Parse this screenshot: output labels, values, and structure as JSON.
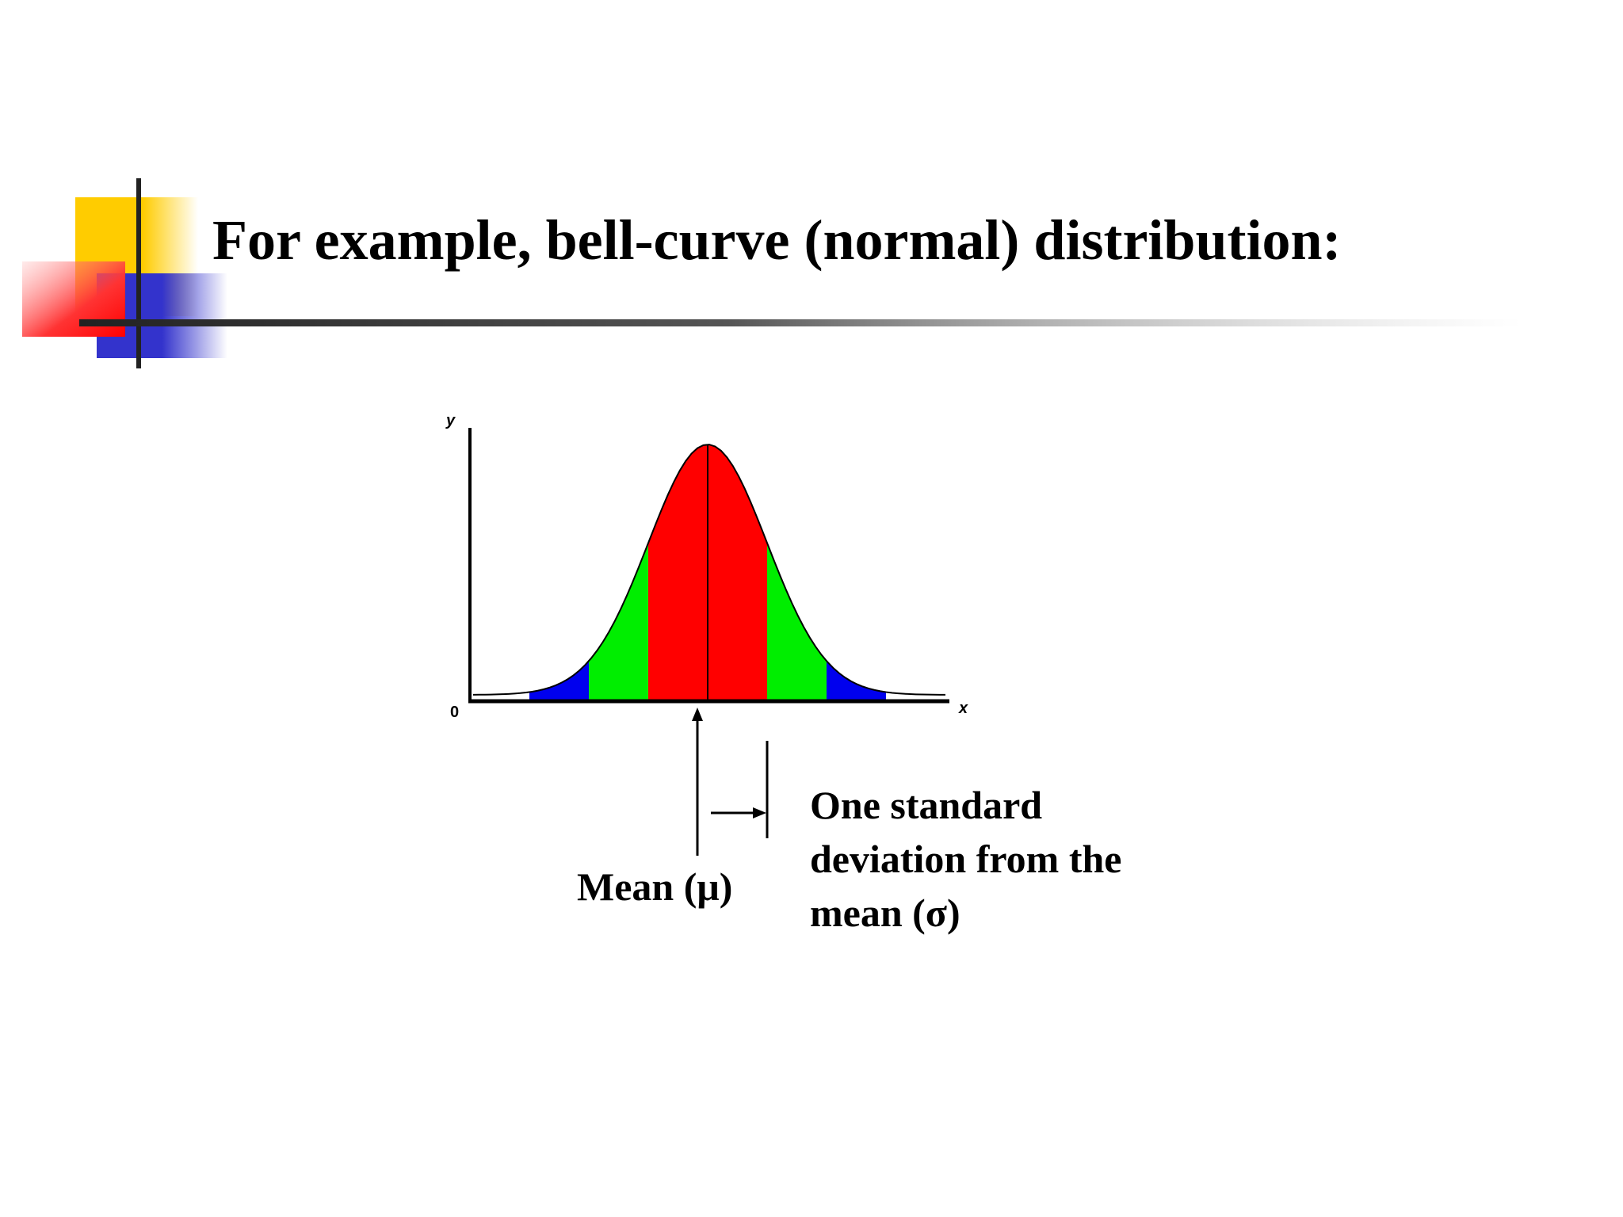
{
  "slide": {
    "title": "For example, bell-curve (normal) distribution:"
  },
  "colors": {
    "deco_yellow": "#FFCC00",
    "deco_red": "#FF3333",
    "deco_blue": "#3333CC",
    "band_1sd": "#FF0000",
    "band_2sd": "#00EE00",
    "band_3sd": "#0000EE",
    "tail": "#FFFFFF"
  },
  "annotations": {
    "mean_label": "Mean (μ)",
    "sd_label_lines": [
      "One standard",
      "deviation from the",
      "mean (σ)"
    ]
  },
  "chart_data": {
    "type": "area",
    "title": "",
    "ylabel": "y",
    "xlabel": "x",
    "origin_label": "0",
    "distribution": "normal",
    "mean": 0,
    "sd": 1,
    "xlim": [
      -4,
      4
    ],
    "bands": [
      {
        "from": -1,
        "to": 1,
        "color": "#FF0000"
      },
      {
        "from": -2,
        "to": -1,
        "color": "#00EE00"
      },
      {
        "from": 1,
        "to": 2,
        "color": "#00EE00"
      },
      {
        "from": -3,
        "to": -2,
        "color": "#0000EE"
      },
      {
        "from": 2,
        "to": 3,
        "color": "#0000EE"
      }
    ],
    "grid": false,
    "legend": "none"
  }
}
